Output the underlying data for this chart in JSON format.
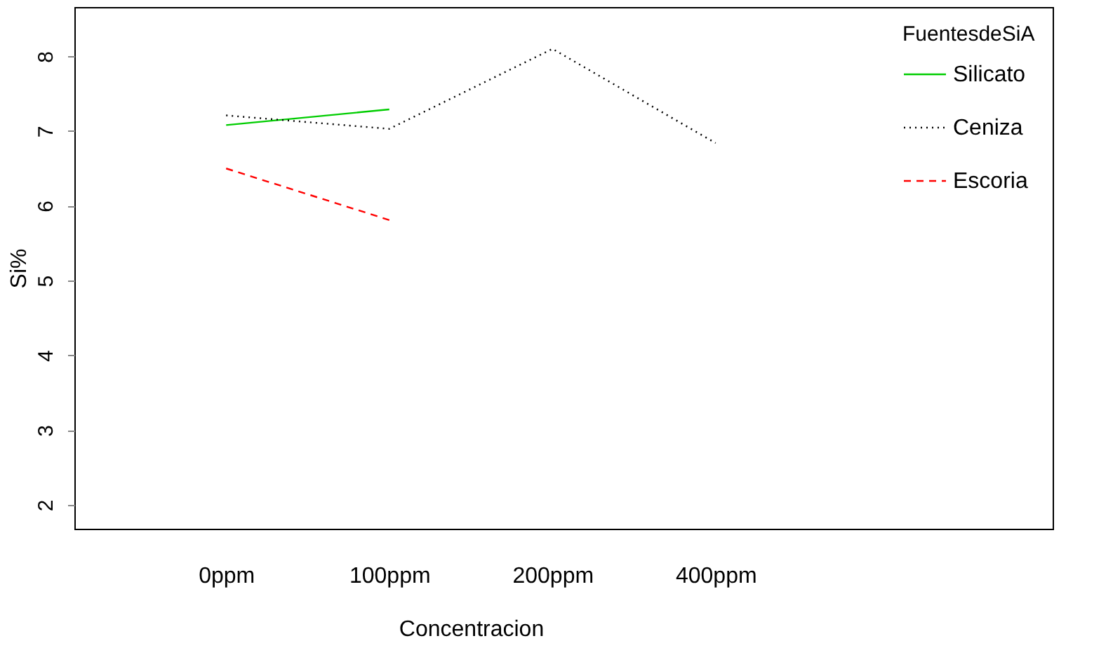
{
  "chart_data": {
    "type": "line",
    "xlabel": "Concentracion",
    "ylabel": "Si%",
    "legend_title": "FuentesdeSiA",
    "categories": [
      "0ppm",
      "100ppm",
      "200ppm",
      "400ppm"
    ],
    "series": [
      {
        "name": "Silicato",
        "color": "#00cd00",
        "line_style": "solid",
        "values": [
          7.08,
          7.29,
          null,
          null
        ]
      },
      {
        "name": "Ceniza",
        "color": "#000000",
        "line_style": "dotted",
        "values": [
          7.21,
          7.03,
          8.1,
          6.84
        ]
      },
      {
        "name": "Escoria",
        "color": "#ff0000",
        "line_style": "dashed",
        "values": [
          6.5,
          5.81,
          null,
          null
        ]
      }
    ],
    "ylim": [
      1.68,
      8.66
    ],
    "yticks": [
      2,
      3,
      4,
      5,
      6,
      7,
      8
    ],
    "grid": false,
    "legend": "top right",
    "marker": "none"
  }
}
